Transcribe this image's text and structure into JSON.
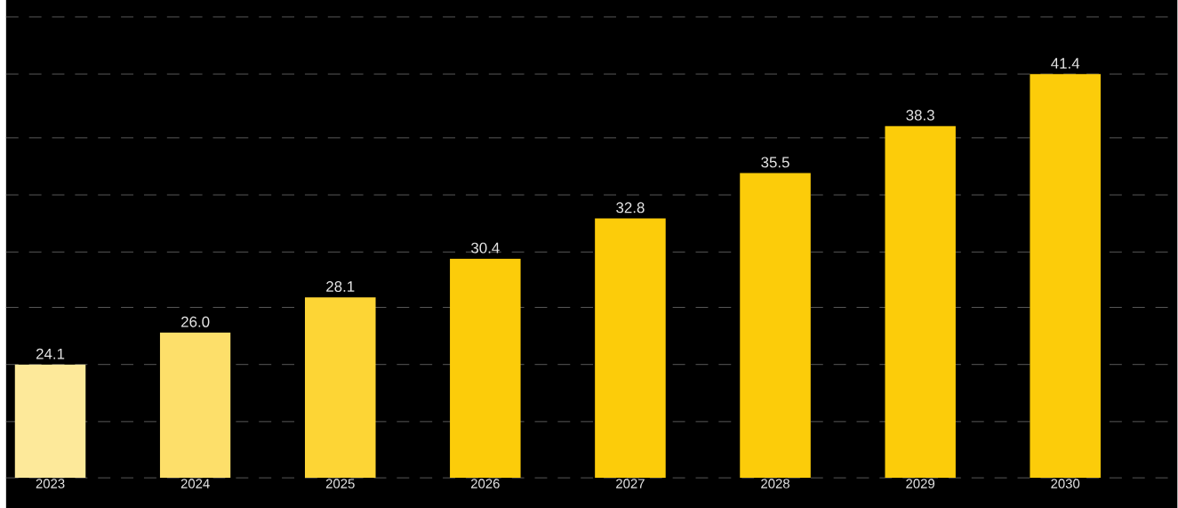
{
  "chart_data": {
    "type": "bar",
    "categories": [
      "2023",
      "2024",
      "2025",
      "2026",
      "2027",
      "2028",
      "2029",
      "2030"
    ],
    "values": [
      24.1,
      26.0,
      28.1,
      30.4,
      32.8,
      35.5,
      38.3,
      41.4
    ],
    "colors": [
      "#fde99a",
      "#fddf6a",
      "#fdd535",
      "#fccc0a",
      "#fccc0a",
      "#fccc0a",
      "#fccc0a",
      "#fccc0a"
    ],
    "ylim": [
      17.35,
      45.8
    ],
    "yticks": [
      {
        "value": 17.35,
        "label": null
      },
      {
        "value": 20.7,
        "label": null
      },
      {
        "value": 24.1,
        "label": null
      },
      {
        "value": 27.5,
        "label": null
      },
      {
        "value": 30.8,
        "label": null
      },
      {
        "value": 34.2,
        "label": null
      },
      {
        "value": 37.6,
        "label": null
      },
      {
        "value": 41.4,
        "label": null
      },
      {
        "value": 44.8,
        "label": null
      }
    ],
    "value_labels": [
      "24.1",
      "26.0",
      "28.1",
      "30.4",
      "32.8",
      "35.5",
      "38.3",
      "41.4"
    ],
    "grid": "y",
    "tick_labels": "x"
  }
}
